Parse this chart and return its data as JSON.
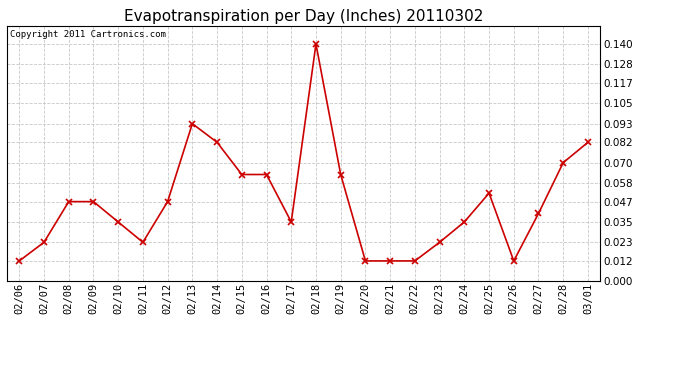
{
  "title": "Evapotranspiration per Day (Inches) 20110302",
  "copyright_text": "Copyright 2011 Cartronics.com",
  "dates": [
    "02/06",
    "02/07",
    "02/08",
    "02/09",
    "02/10",
    "02/11",
    "02/12",
    "02/13",
    "02/14",
    "02/15",
    "02/16",
    "02/17",
    "02/18",
    "02/19",
    "02/20",
    "02/21",
    "02/22",
    "02/23",
    "02/24",
    "02/25",
    "02/26",
    "02/27",
    "02/28",
    "03/01"
  ],
  "values": [
    0.012,
    0.023,
    0.047,
    0.047,
    0.035,
    0.023,
    0.047,
    0.093,
    0.082,
    0.063,
    0.063,
    0.035,
    0.14,
    0.063,
    0.012,
    0.012,
    0.012,
    0.023,
    0.035,
    0.052,
    0.012,
    0.04,
    0.07,
    0.082
  ],
  "ylim": [
    0.0,
    0.1505
  ],
  "yticks": [
    0.0,
    0.012,
    0.023,
    0.035,
    0.047,
    0.058,
    0.07,
    0.082,
    0.093,
    0.105,
    0.117,
    0.128,
    0.14
  ],
  "line_color": "#cc0000",
  "marker": "x",
  "marker_color": "#cc0000",
  "bg_color": "#ffffff",
  "grid_color": "#c8c8c8",
  "title_fontsize": 11,
  "copyright_fontsize": 6.5,
  "tick_fontsize": 7.5,
  "axes_bg": "#ffffff"
}
